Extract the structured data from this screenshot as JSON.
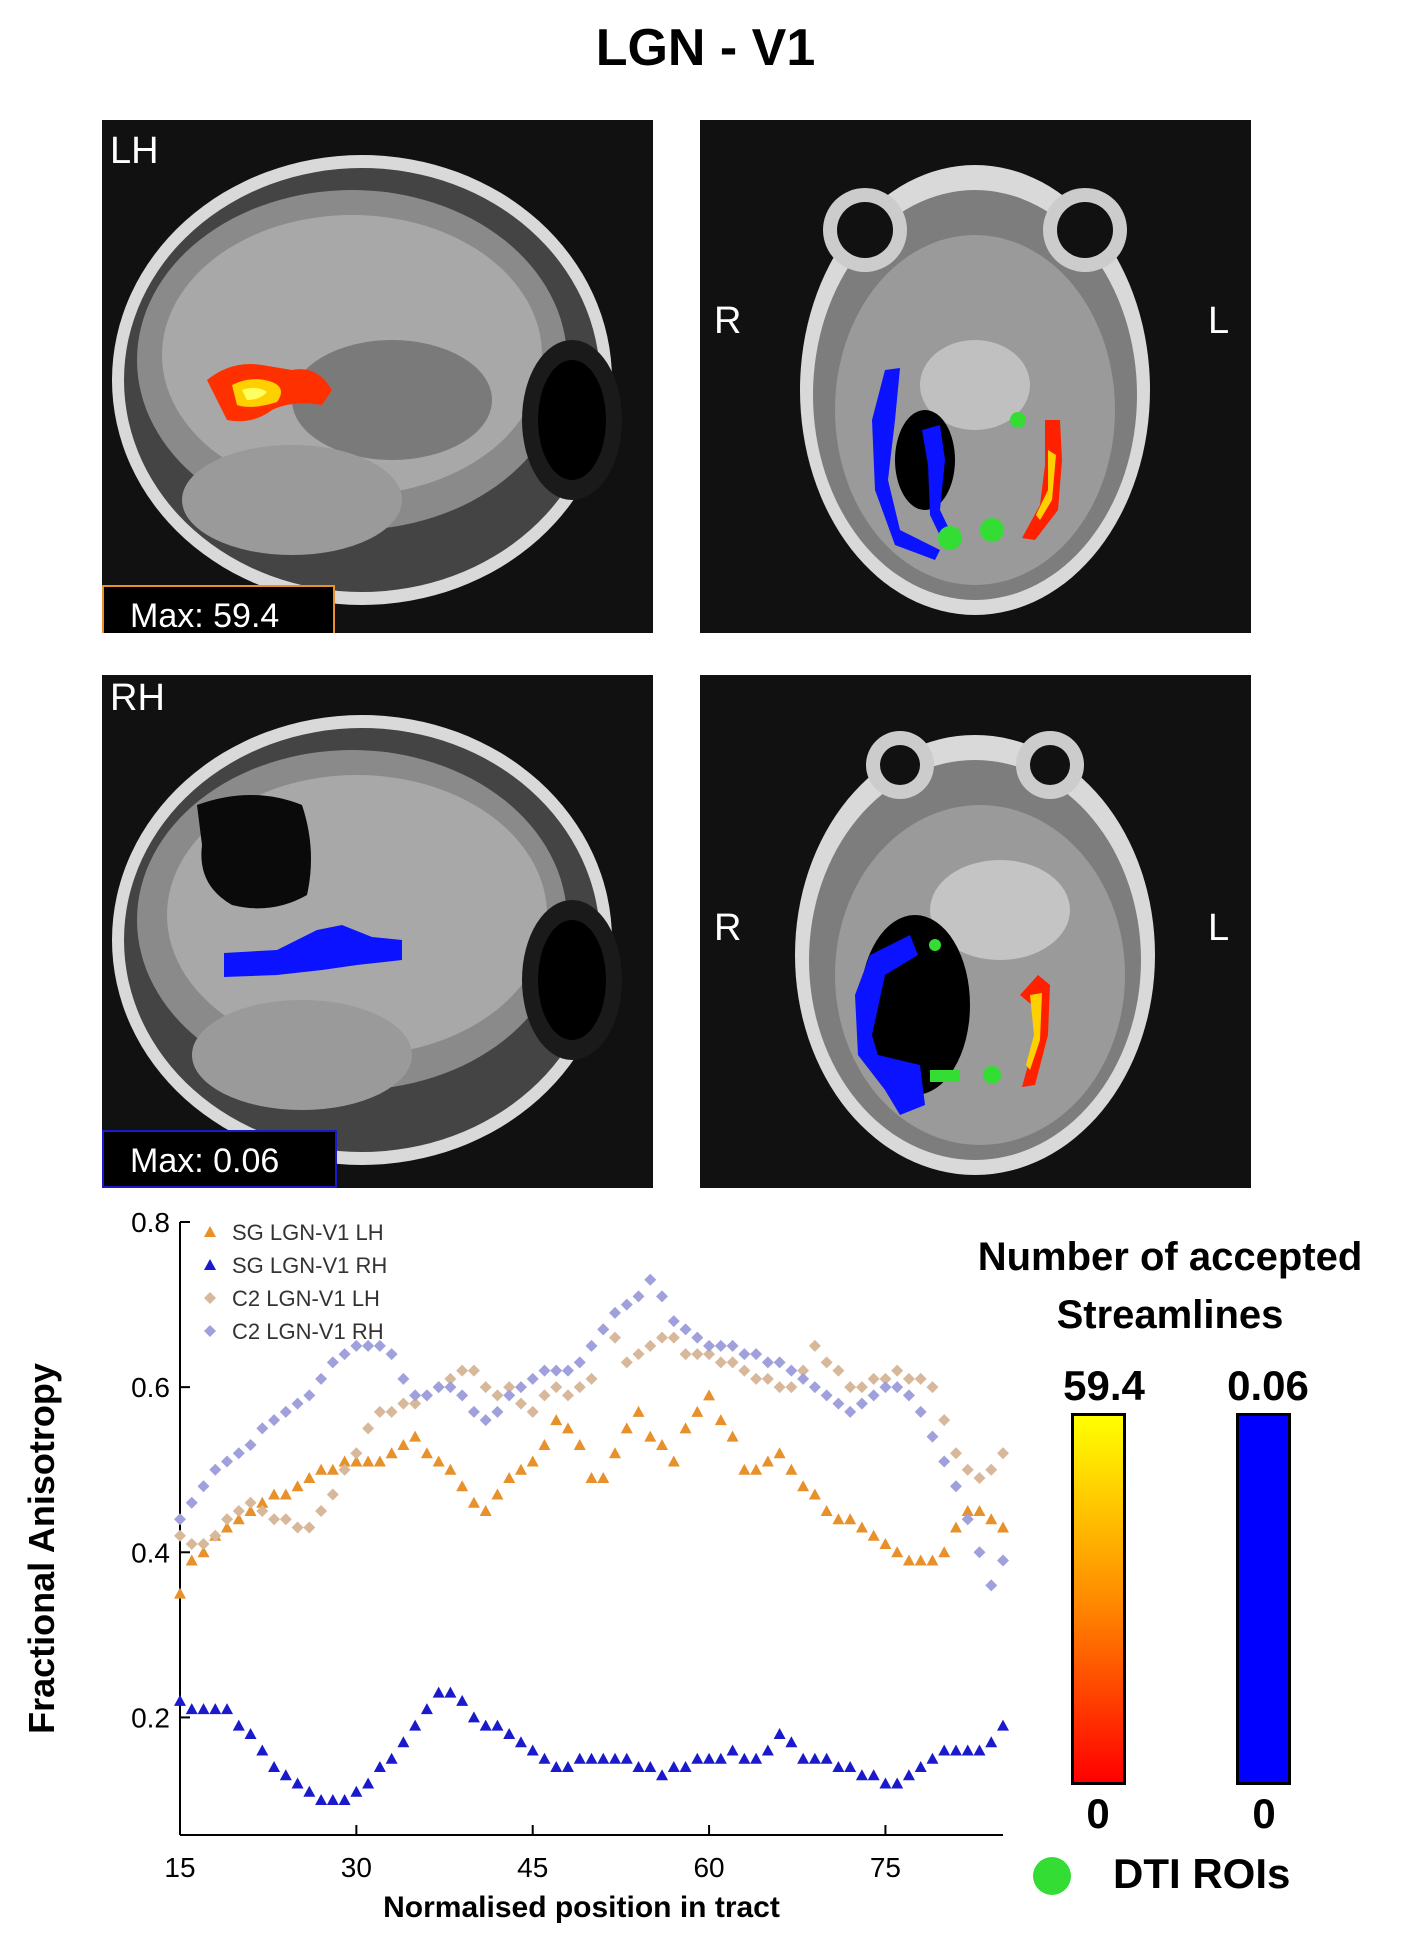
{
  "title": "LGN - V1",
  "panels": {
    "lh_label": "LH",
    "rh_label": "RH",
    "lh_max": "Max: 59.4",
    "rh_max": "Max: 0.06",
    "axial_top_left": "R",
    "axial_top_right": "L",
    "axial_bottom_left": "R",
    "axial_bottom_right": "L"
  },
  "colorbars": {
    "title_line1": "Number of accepted",
    "title_line2": "Streamlines",
    "lh_max": "59.4",
    "lh_min": "0",
    "rh_max": "0.06",
    "rh_min": "0",
    "lh_colors": [
      "#ffff00",
      "#ff8c00",
      "#ff0000"
    ],
    "rh_color": "#0000ff"
  },
  "legend_roi": {
    "label": "DTI ROIs",
    "color": "#33dd33"
  },
  "chart_data": {
    "type": "scatter",
    "xlabel": "Normalised position in tract",
    "ylabel": "Fractional Anisotropy",
    "xlim": [
      15,
      85
    ],
    "ylim": [
      0.1,
      0.8
    ],
    "xticks": [
      15,
      30,
      45,
      60,
      75
    ],
    "yticks": [
      0.2,
      0.4,
      0.6,
      0.8
    ],
    "xtick_labels": [
      "15",
      "30",
      "45",
      "60",
      "75"
    ],
    "ytick_labels": [
      "0.2",
      "0.4",
      "0.6",
      "0.8"
    ],
    "legend_position": "top-left",
    "series": [
      {
        "name": "SG LGN-V1 LH",
        "marker": "triangle",
        "color": "#e8902a",
        "x": [
          15,
          16,
          17,
          18,
          19,
          20,
          21,
          22,
          23,
          24,
          25,
          26,
          27,
          28,
          29,
          30,
          31,
          32,
          33,
          34,
          35,
          36,
          37,
          38,
          39,
          40,
          41,
          42,
          43,
          44,
          45,
          46,
          47,
          48,
          49,
          50,
          51,
          52,
          53,
          54,
          55,
          56,
          57,
          58,
          59,
          60,
          61,
          62,
          63,
          64,
          65,
          66,
          67,
          68,
          69,
          70,
          71,
          72,
          73,
          74,
          75,
          76,
          77,
          78,
          79,
          80,
          81,
          82,
          83,
          84,
          85
        ],
        "y": [
          0.35,
          0.39,
          0.4,
          0.42,
          0.43,
          0.44,
          0.45,
          0.46,
          0.47,
          0.47,
          0.48,
          0.49,
          0.5,
          0.5,
          0.51,
          0.51,
          0.51,
          0.51,
          0.52,
          0.53,
          0.54,
          0.52,
          0.51,
          0.5,
          0.48,
          0.46,
          0.45,
          0.47,
          0.49,
          0.5,
          0.51,
          0.53,
          0.56,
          0.55,
          0.53,
          0.49,
          0.49,
          0.52,
          0.55,
          0.57,
          0.54,
          0.53,
          0.51,
          0.55,
          0.57,
          0.59,
          0.56,
          0.54,
          0.5,
          0.5,
          0.51,
          0.52,
          0.5,
          0.48,
          0.47,
          0.45,
          0.44,
          0.44,
          0.43,
          0.42,
          0.41,
          0.4,
          0.39,
          0.39,
          0.39,
          0.4,
          0.43,
          0.45,
          0.45,
          0.44,
          0.43
        ]
      },
      {
        "name": "SG LGN-V1 RH",
        "marker": "triangle",
        "color": "#1a1acc",
        "x": [
          15,
          16,
          17,
          18,
          19,
          20,
          21,
          22,
          23,
          24,
          25,
          26,
          27,
          28,
          29,
          30,
          31,
          32,
          33,
          34,
          35,
          36,
          37,
          38,
          39,
          40,
          41,
          42,
          43,
          44,
          45,
          46,
          47,
          48,
          49,
          50,
          51,
          52,
          53,
          54,
          55,
          56,
          57,
          58,
          59,
          60,
          61,
          62,
          63,
          64,
          65,
          66,
          67,
          68,
          69,
          70,
          71,
          72,
          73,
          74,
          75,
          76,
          77,
          78,
          79,
          80,
          81,
          82,
          83,
          84,
          85
        ],
        "y": [
          0.22,
          0.21,
          0.21,
          0.21,
          0.21,
          0.19,
          0.18,
          0.16,
          0.14,
          0.13,
          0.12,
          0.11,
          0.1,
          0.1,
          0.1,
          0.11,
          0.12,
          0.14,
          0.15,
          0.17,
          0.19,
          0.21,
          0.23,
          0.23,
          0.22,
          0.2,
          0.19,
          0.19,
          0.18,
          0.17,
          0.16,
          0.15,
          0.14,
          0.14,
          0.15,
          0.15,
          0.15,
          0.15,
          0.15,
          0.14,
          0.14,
          0.13,
          0.14,
          0.14,
          0.15,
          0.15,
          0.15,
          0.16,
          0.15,
          0.15,
          0.16,
          0.18,
          0.17,
          0.15,
          0.15,
          0.15,
          0.14,
          0.14,
          0.13,
          0.13,
          0.12,
          0.12,
          0.13,
          0.14,
          0.15,
          0.16,
          0.16,
          0.16,
          0.16,
          0.17,
          0.19
        ]
      },
      {
        "name": "C2 LGN-V1 LH",
        "marker": "diamond",
        "color": "#d8b89a",
        "x": [
          15,
          16,
          17,
          18,
          19,
          20,
          21,
          22,
          23,
          24,
          25,
          26,
          27,
          28,
          29,
          30,
          31,
          32,
          33,
          34,
          35,
          36,
          37,
          38,
          39,
          40,
          41,
          42,
          43,
          44,
          45,
          46,
          47,
          48,
          49,
          50,
          51,
          52,
          53,
          54,
          55,
          56,
          57,
          58,
          59,
          60,
          61,
          62,
          63,
          64,
          65,
          66,
          67,
          68,
          69,
          70,
          71,
          72,
          73,
          74,
          75,
          76,
          77,
          78,
          79,
          80,
          81,
          82,
          83,
          84,
          85
        ],
        "y": [
          0.42,
          0.41,
          0.41,
          0.42,
          0.44,
          0.45,
          0.46,
          0.45,
          0.44,
          0.44,
          0.43,
          0.43,
          0.45,
          0.47,
          0.5,
          0.52,
          0.55,
          0.57,
          0.57,
          0.58,
          0.58,
          0.59,
          0.6,
          0.61,
          0.62,
          0.62,
          0.6,
          0.59,
          0.6,
          0.58,
          0.57,
          0.59,
          0.6,
          0.59,
          0.6,
          0.61,
          0.67,
          0.66,
          0.63,
          0.64,
          0.65,
          0.66,
          0.66,
          0.64,
          0.64,
          0.64,
          0.63,
          0.63,
          0.62,
          0.61,
          0.61,
          0.6,
          0.6,
          0.62,
          0.65,
          0.63,
          0.62,
          0.6,
          0.6,
          0.61,
          0.61,
          0.62,
          0.61,
          0.61,
          0.6,
          0.56,
          0.52,
          0.5,
          0.49,
          0.5,
          0.52
        ]
      },
      {
        "name": "C2 LGN-V1 RH",
        "marker": "diamond",
        "color": "#a0a0dd",
        "x": [
          15,
          16,
          17,
          18,
          19,
          20,
          21,
          22,
          23,
          24,
          25,
          26,
          27,
          28,
          29,
          30,
          31,
          32,
          33,
          34,
          35,
          36,
          37,
          38,
          39,
          40,
          41,
          42,
          43,
          44,
          45,
          46,
          47,
          48,
          49,
          50,
          51,
          52,
          53,
          54,
          55,
          56,
          57,
          58,
          59,
          60,
          61,
          62,
          63,
          64,
          65,
          66,
          67,
          68,
          69,
          70,
          71,
          72,
          73,
          74,
          75,
          76,
          77,
          78,
          79,
          80,
          81,
          82,
          83,
          84,
          85
        ],
        "y": [
          0.44,
          0.46,
          0.48,
          0.5,
          0.51,
          0.52,
          0.53,
          0.55,
          0.56,
          0.57,
          0.58,
          0.59,
          0.61,
          0.63,
          0.64,
          0.65,
          0.65,
          0.65,
          0.64,
          0.61,
          0.59,
          0.59,
          0.6,
          0.6,
          0.59,
          0.57,
          0.56,
          0.57,
          0.59,
          0.6,
          0.61,
          0.62,
          0.62,
          0.62,
          0.63,
          0.65,
          0.67,
          0.69,
          0.7,
          0.71,
          0.73,
          0.71,
          0.68,
          0.67,
          0.66,
          0.65,
          0.65,
          0.65,
          0.64,
          0.64,
          0.63,
          0.63,
          0.62,
          0.61,
          0.6,
          0.59,
          0.58,
          0.57,
          0.58,
          0.59,
          0.6,
          0.6,
          0.59,
          0.57,
          0.54,
          0.51,
          0.48,
          0.44,
          0.4,
          0.36,
          0.39
        ]
      }
    ]
  }
}
